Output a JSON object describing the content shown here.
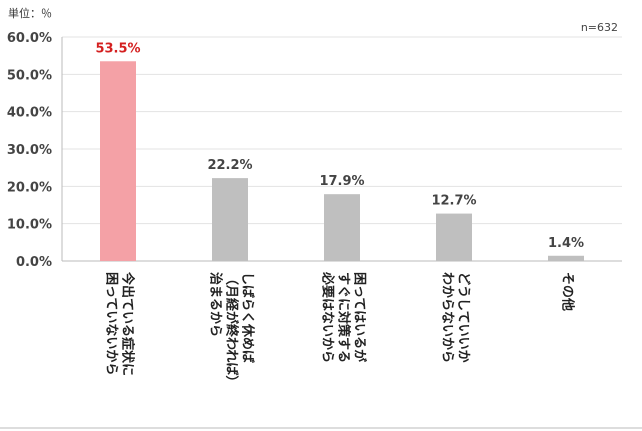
{
  "chart_data": {
    "type": "bar",
    "unit_label": "単位：％",
    "sample_label": "n=632",
    "ylim": [
      0,
      60
    ],
    "y_ticks": [
      "0.0%",
      "10.0%",
      "20.0%",
      "30.0%",
      "40.0%",
      "50.0%",
      "60.0%"
    ],
    "y_tick_values": [
      0,
      10,
      20,
      30,
      40,
      50,
      60
    ],
    "grid": true,
    "categories": [
      {
        "lines": [
          "今出ている症状に",
          "困っていないから"
        ]
      },
      {
        "lines": [
          "しばらく休めば",
          "（月経が終われば）",
          "治まるから"
        ]
      },
      {
        "lines": [
          "困ってはいるが",
          "すぐに対策する",
          "必要はないから"
        ]
      },
      {
        "lines": [
          "どうしていいか",
          "わからないから"
        ]
      },
      {
        "lines": [
          "その他"
        ]
      }
    ],
    "values": [
      53.5,
      22.2,
      17.9,
      12.7,
      1.4
    ],
    "value_labels": [
      "53.5%",
      "22.2%",
      "17.9%",
      "12.7%",
      "1.4%"
    ],
    "colors": {
      "highlight_bar": "#f4a1a6",
      "bar": "#bfbfbf",
      "highlight_label": "#d42020"
    },
    "highlight_index": 0
  }
}
